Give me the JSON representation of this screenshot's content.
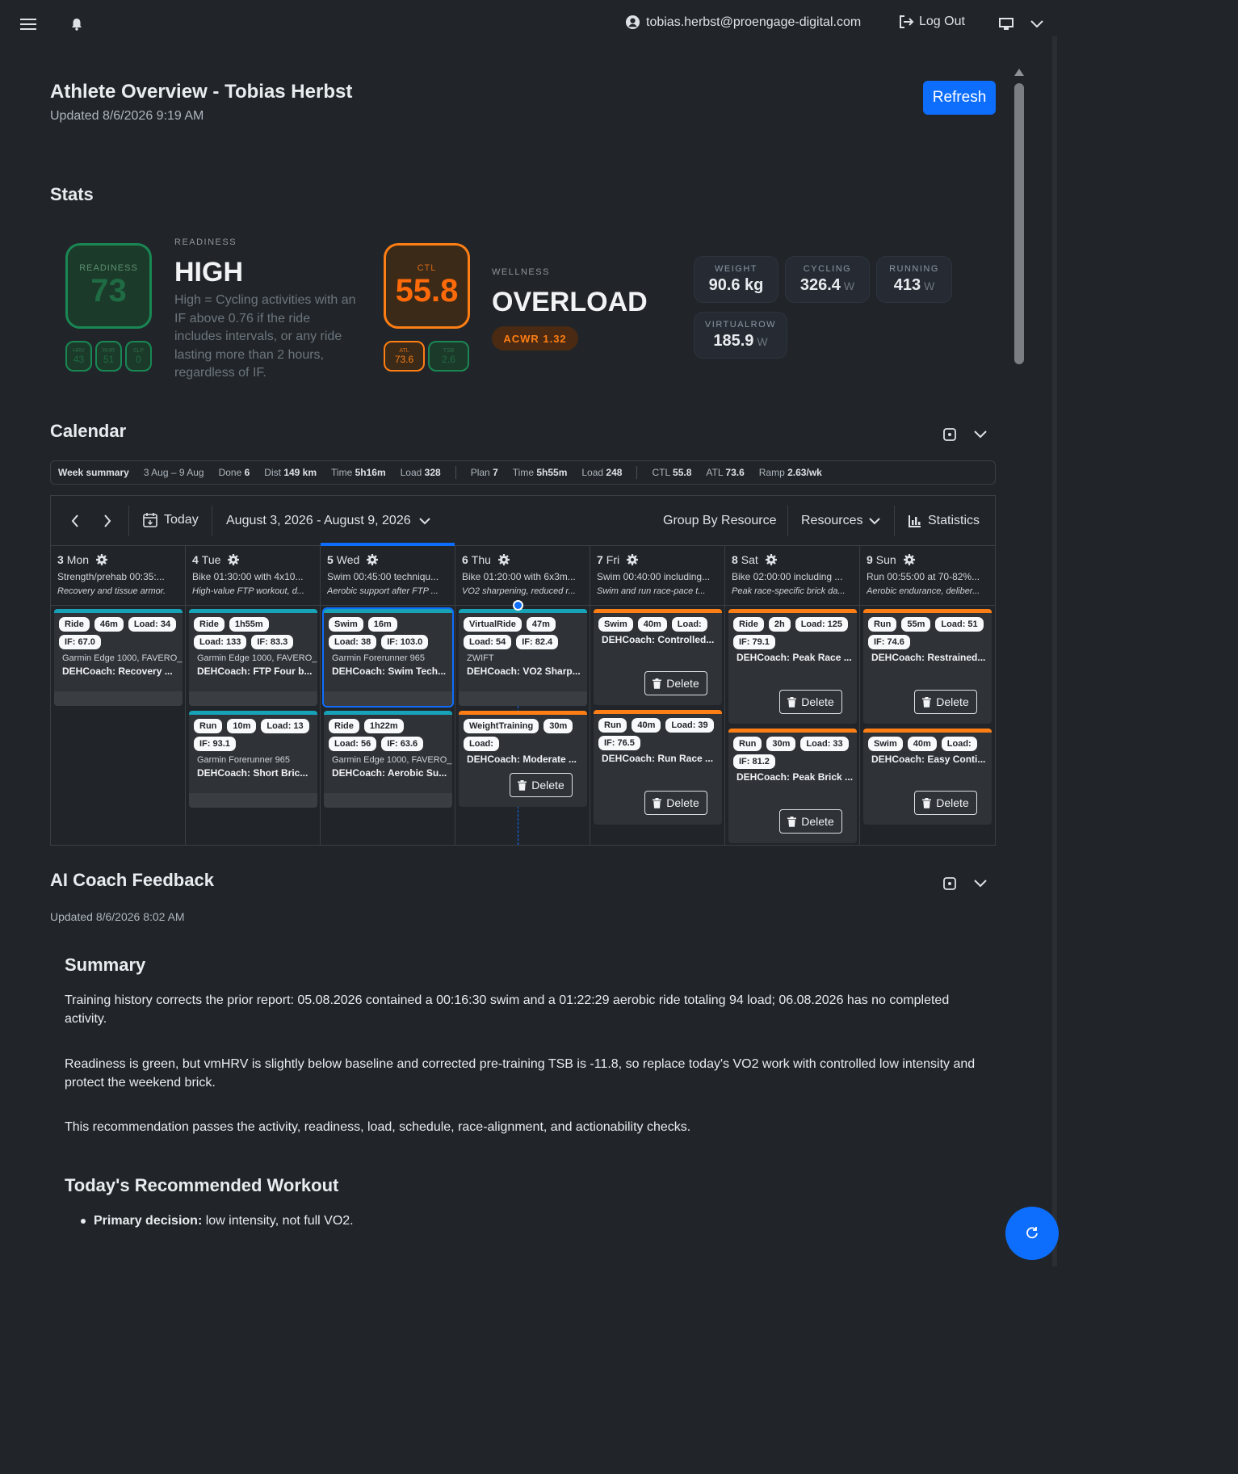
{
  "nav": {
    "user_email": "tobias.herbst@proengage-digital.com",
    "logout_label": "Log Out"
  },
  "header": {
    "title": "Athlete Overview - Tobias Herbst",
    "updated": "Updated 8/6/2026 9:19 AM",
    "refresh_label": "Refresh"
  },
  "stats": {
    "heading": "Stats",
    "readiness": {
      "ring_label": "READINESS",
      "ring_value": "73",
      "small": [
        {
          "label": "HRV",
          "value": "43"
        },
        {
          "label": "RHR",
          "value": "51"
        },
        {
          "label": "SLP",
          "value": "0"
        }
      ],
      "label": "READINESS",
      "value": "HIGH",
      "description": "High = Cycling activities with an IF above 0.76 if the ride includes intervals, or any ride lasting more than 2 hours, regardless of IF."
    },
    "ctl": {
      "ring_label": "CTL",
      "ring_value": "55.8",
      "small": [
        {
          "label": "ATL",
          "value": "73.6"
        },
        {
          "label": "TSB",
          "value": "2.6"
        }
      ]
    },
    "wellness": {
      "label": "WELLNESS",
      "value": "OVERLOAD",
      "badge": "ACWR 1.32"
    },
    "metrics": [
      {
        "label": "WEIGHT",
        "value": "90.6 kg",
        "unit": ""
      },
      {
        "label": "CYCLING",
        "value": "326.4",
        "unit": "W"
      },
      {
        "label": "RUNNING",
        "value": "413",
        "unit": "W"
      },
      {
        "label": "VIRTUALROW",
        "value": "185.9",
        "unit": "W"
      }
    ]
  },
  "calendar": {
    "heading": "Calendar",
    "week_summary": {
      "label": "Week summary",
      "range": "3 Aug – 9 Aug",
      "done_k": "Done",
      "done": "6",
      "dist_k": "Dist",
      "dist": "149 km",
      "time_k": "Time",
      "time": "5h16m",
      "load_k": "Load",
      "load": "328",
      "plan_k": "Plan",
      "plan": "7",
      "ptime_k": "Time",
      "ptime": "5h55m",
      "pload_k": "Load",
      "pload": "248",
      "ctl_k": "CTL",
      "ctl": "55.8",
      "atl_k": "ATL",
      "atl": "73.6",
      "ramp_k": "Ramp",
      "ramp": "2.63/wk"
    },
    "toolbar": {
      "today": "Today",
      "range": "August 3, 2026 - August 9, 2026",
      "group_by": "Group By Resource",
      "resources": "Resources",
      "statistics": "Statistics"
    },
    "delete_label": "Delete",
    "days": [
      {
        "num": "3",
        "name": "Mon",
        "plan": "Strength/prehab 00:35:...",
        "note": "Recovery and tissue armor.",
        "cards": [
          {
            "color": "#17a2b8",
            "tags": [
              "Ride",
              "46m",
              "Load: 34",
              "IF: 67.0"
            ],
            "device": "Garmin Edge 1000, FAVERO_",
            "name": "DEHCoach: Recovery ..."
          }
        ]
      },
      {
        "num": "4",
        "name": "Tue",
        "plan": "Bike 01:30:00 with 4x10...",
        "note": "High-value FTP workout, d...",
        "cards": [
          {
            "color": "#17a2b8",
            "tags": [
              "Ride",
              "1h55m",
              "Load: 133",
              "IF: 83.3"
            ],
            "device": "Garmin Edge 1000, FAVERO_",
            "name": "DEHCoach: FTP Four b..."
          },
          {
            "color": "#17a2b8",
            "tags": [
              "Run",
              "10m",
              "Load: 13",
              "IF: 93.1"
            ],
            "device": "Garmin Forerunner 965",
            "name": "DEHCoach: Short Bric..."
          }
        ]
      },
      {
        "num": "5",
        "name": "Wed",
        "plan": "Swim 00:45:00 techniqu...",
        "note": "Aerobic support after FTP ...",
        "cards": [
          {
            "color": "#17a2b8",
            "tags": [
              "Swim",
              "16m",
              "Load: 38",
              "IF: 103.0"
            ],
            "device": "Garmin Forerunner 965",
            "name": "DEHCoach: Swim Tech..."
          },
          {
            "color": "#17a2b8",
            "tags": [
              "Ride",
              "1h22m",
              "Load: 56",
              "IF: 63.6"
            ],
            "device": "Garmin Edge 1000, FAVERO_",
            "name": "DEHCoach: Aerobic Su..."
          }
        ]
      },
      {
        "num": "6",
        "name": "Thu",
        "plan": "Bike 01:20:00 with 6x3m...",
        "note": "VO2 sharpening, reduced r...",
        "cards": [
          {
            "color": "#17a2b8",
            "tags": [
              "VirtualRide",
              "47m",
              "Load: 54",
              "IF: 82.4"
            ],
            "device": "ZWIFT",
            "name": "DEHCoach: VO2 Sharp..."
          },
          {
            "color": "#fd7e14",
            "tags": [
              "WeightTraining",
              "30m",
              "Load:"
            ],
            "device": "",
            "name": "DEHCoach: Moderate ..."
          }
        ]
      },
      {
        "num": "7",
        "name": "Fri",
        "plan": "Swim 00:40:00 including...",
        "note": "Swim and run race-pace t...",
        "cards": [
          {
            "color": "#fd7e14",
            "tags": [
              "Swim",
              "40m",
              "Load:"
            ],
            "device": "",
            "name": "DEHCoach: Controlled..."
          },
          {
            "color": "#fd7e14",
            "tags": [
              "Run",
              "40m",
              "Load: 39",
              "IF: 76.5"
            ],
            "device": "",
            "name": "DEHCoach: Run Race ..."
          }
        ]
      },
      {
        "num": "8",
        "name": "Sat",
        "plan": "Bike 02:00:00 including ...",
        "note": "Peak race-specific brick da...",
        "cards": [
          {
            "color": "#fd7e14",
            "tags": [
              "Ride",
              "2h",
              "Load: 125",
              "IF: 79.1"
            ],
            "device": "",
            "name": "DEHCoach: Peak Race ..."
          },
          {
            "color": "#fd7e14",
            "tags": [
              "Run",
              "30m",
              "Load: 33",
              "IF: 81.2"
            ],
            "device": "",
            "name": "DEHCoach: Peak Brick ..."
          }
        ]
      },
      {
        "num": "9",
        "name": "Sun",
        "plan": "Run 00:55:00 at 70-82%...",
        "note": "Aerobic endurance, deliber...",
        "cards": [
          {
            "color": "#fd7e14",
            "tags": [
              "Run",
              "55m",
              "Load: 51",
              "IF: 74.6"
            ],
            "device": "",
            "name": "DEHCoach: Restrained..."
          },
          {
            "color": "#fd7e14",
            "tags": [
              "Swim",
              "40m",
              "Load:"
            ],
            "device": "",
            "name": "DEHCoach: Easy Conti..."
          }
        ]
      }
    ]
  },
  "coach": {
    "heading": "AI Coach Feedback",
    "updated": "Updated 8/6/2026 8:02 AM",
    "summary_h": "Summary",
    "p1": "Training history corrects the prior report: 05.08.2026 contained a 00:16:30 swim and a 01:22:29 aerobic ride totaling 94 load; 06.08.2026 has no completed activity.",
    "p2": "Readiness is green, but vmHRV is slightly below baseline and corrected pre-training TSB is -11.8, so replace today's VO2 work with controlled low intensity and protect the weekend brick.",
    "p3": "This recommendation passes the activity, readiness, load, schedule, race-alignment, and actionability checks.",
    "workout_h": "Today's Recommended Workout",
    "bullet_k": "Primary decision:",
    "bullet_v": " low intensity, not full VO2."
  },
  "colors": {
    "accent": "#0d6efd",
    "green": "#198754",
    "orange": "#fd7e14",
    "cyan": "#17a2b8"
  }
}
